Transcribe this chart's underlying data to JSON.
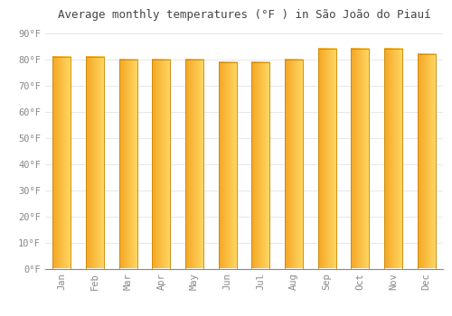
{
  "title": "Average monthly temperatures (°F ) in São João do Piauí",
  "months": [
    "Jan",
    "Feb",
    "Mar",
    "Apr",
    "May",
    "Jun",
    "Jul",
    "Aug",
    "Sep",
    "Oct",
    "Nov",
    "Dec"
  ],
  "values": [
    81,
    81,
    80,
    80,
    80,
    79,
    79,
    80,
    84,
    84,
    84,
    82
  ],
  "bar_color_left": "#F5A623",
  "bar_color_right": "#FFD966",
  "background_color": "#FFFFFF",
  "grid_color": "#DDDDDD",
  "yticks": [
    0,
    10,
    20,
    30,
    40,
    50,
    60,
    70,
    80,
    90
  ],
  "ylim": [
    0,
    93
  ],
  "title_fontsize": 9,
  "tick_fontsize": 7.5,
  "bar_width": 0.55
}
